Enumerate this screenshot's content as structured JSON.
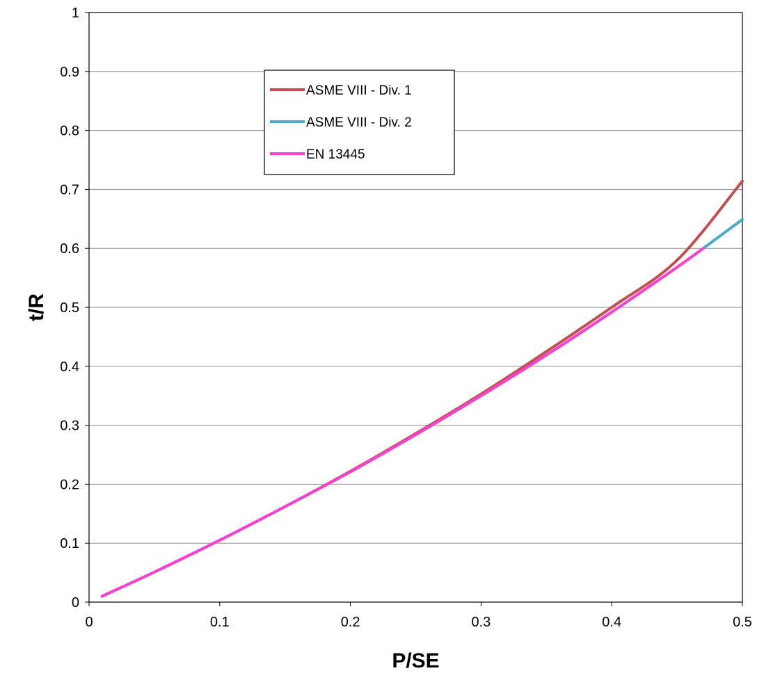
{
  "chart_data": {
    "type": "line",
    "title": "",
    "xlabel": "P/SE",
    "ylabel": "t/R",
    "xlim": [
      0,
      0.5
    ],
    "ylim": [
      0,
      1
    ],
    "x_ticks": [
      0,
      0.1,
      0.2,
      0.3,
      0.4,
      0.5
    ],
    "x_tick_labels": [
      "0",
      "0.1",
      "0.2",
      "0.3",
      "0.4",
      "0.5"
    ],
    "y_ticks": [
      0,
      0.1,
      0.2,
      0.3,
      0.4,
      0.5,
      0.6,
      0.7,
      0.8,
      0.9,
      1
    ],
    "y_tick_labels": [
      "0",
      "0.1",
      "0.2",
      "0.3",
      "0.4",
      "0.5",
      "0.6",
      "0.7",
      "0.8",
      "0.9",
      "1"
    ],
    "grid": "horizontal",
    "legend_position": "upper-left-inside",
    "series": [
      {
        "name": "ASME VIII - Div. 1",
        "color": "#C0504D",
        "x": [
          0.01,
          0.05,
          0.1,
          0.15,
          0.2,
          0.25,
          0.3,
          0.35,
          0.4,
          0.45,
          0.5
        ],
        "y": [
          0.01,
          0.051,
          0.105,
          0.162,
          0.222,
          0.286,
          0.353,
          0.425,
          0.5,
          0.58,
          0.714
        ]
      },
      {
        "name": "ASME VIII - Div. 2",
        "color": "#4BACC6",
        "x": [
          0.01,
          0.05,
          0.1,
          0.15,
          0.2,
          0.25,
          0.3,
          0.35,
          0.4,
          0.45,
          0.47,
          0.5
        ],
        "y": [
          0.01,
          0.051,
          0.105,
          0.162,
          0.221,
          0.284,
          0.35,
          0.419,
          0.492,
          0.568,
          0.6,
          0.649
        ]
      },
      {
        "name": "EN 13445",
        "color": "#FF3FD0",
        "x": [
          0.01,
          0.05,
          0.1,
          0.15,
          0.2,
          0.25,
          0.3,
          0.35,
          0.4,
          0.45,
          0.47
        ],
        "y": [
          0.01,
          0.051,
          0.105,
          0.162,
          0.221,
          0.284,
          0.35,
          0.419,
          0.492,
          0.568,
          0.6
        ]
      }
    ]
  }
}
